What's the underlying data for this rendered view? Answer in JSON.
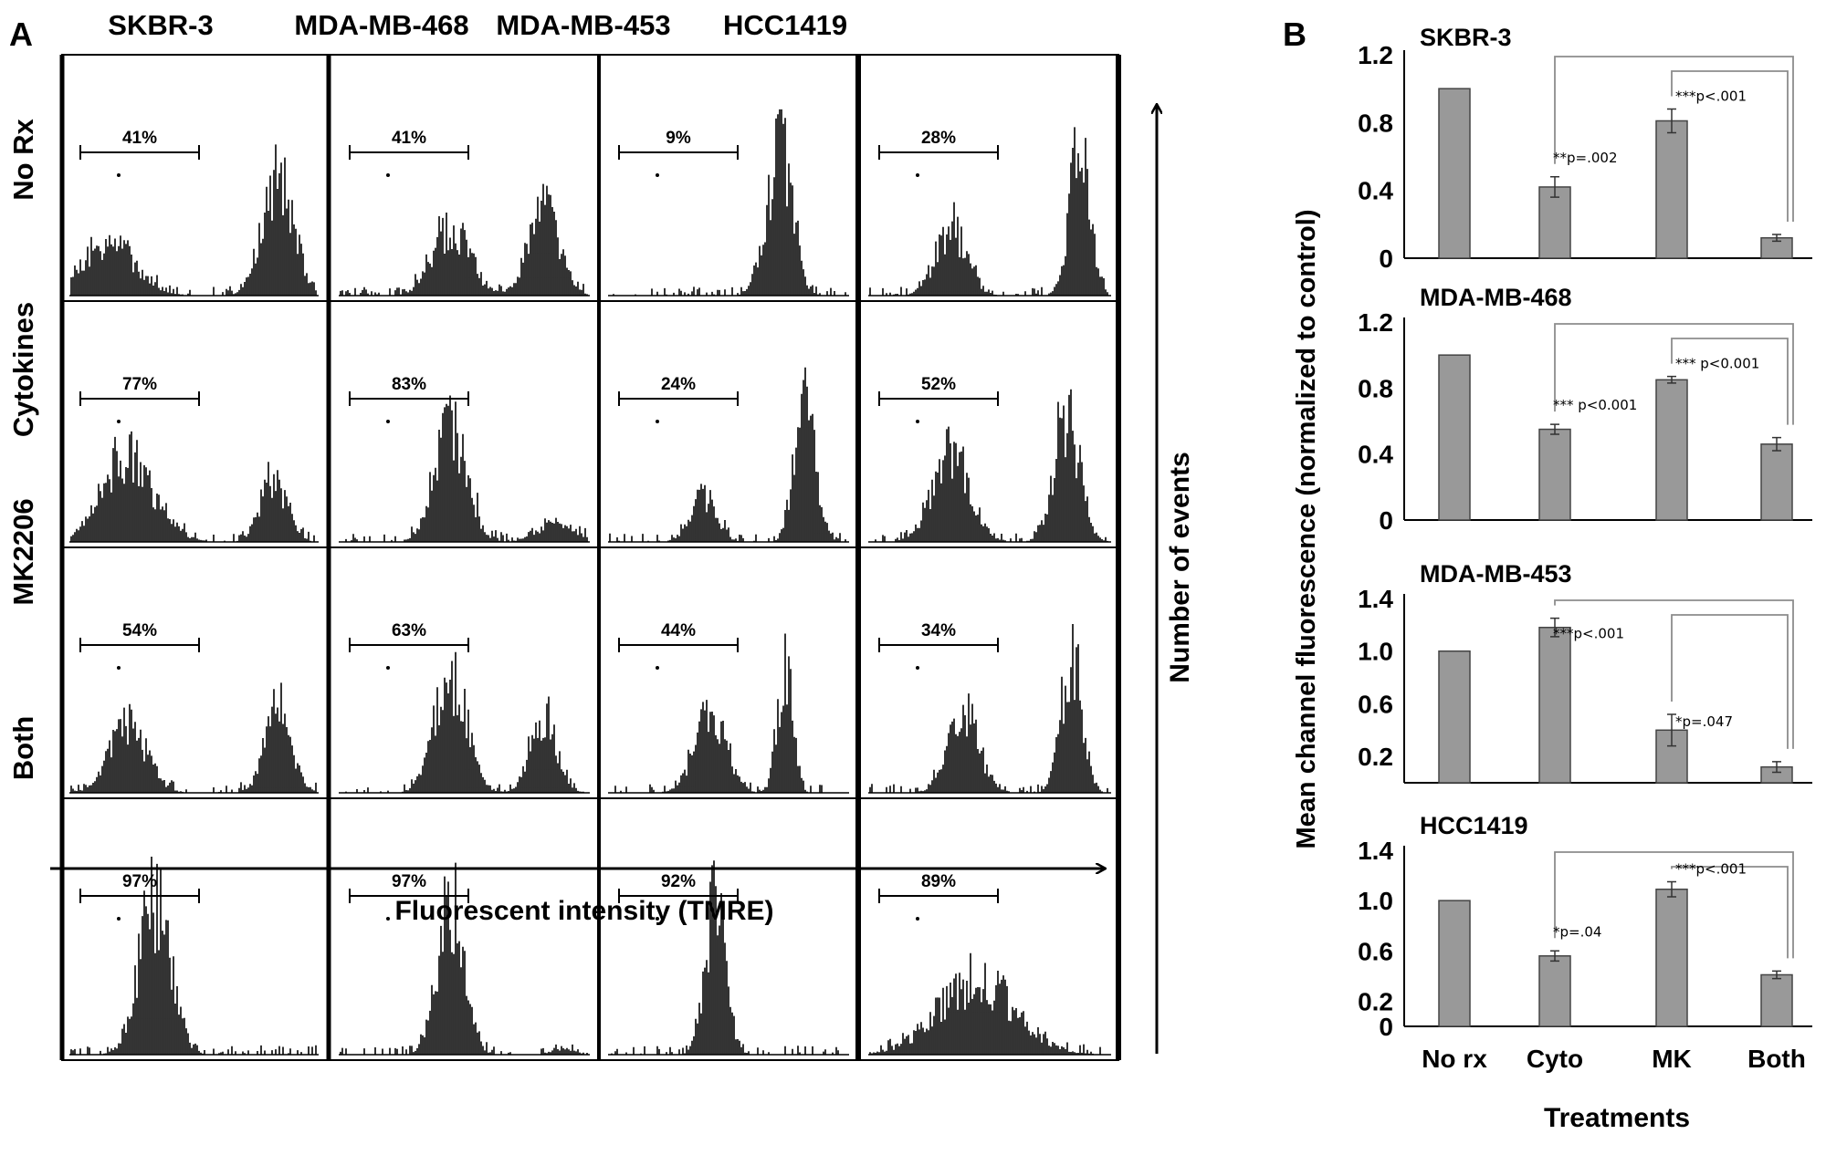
{
  "panel_a": {
    "letter": "A",
    "columns": [
      "SKBR-3",
      "MDA-MB-468",
      "MDA-MB-453",
      "HCC1419"
    ],
    "rows": [
      "No Rx",
      "Cytokines",
      "MK2206",
      "Both"
    ],
    "percentages": [
      [
        "41%",
        "41%",
        "9%",
        "28%"
      ],
      [
        "77%",
        "83%",
        "24%",
        "52%"
      ],
      [
        "54%",
        "63%",
        "44%",
        "34%"
      ],
      [
        "97%",
        "97%",
        "92%",
        "89%"
      ]
    ],
    "xlabel": "Fluorescent intensity (TMRE)",
    "ylabel": "Number of events"
  },
  "panel_b": {
    "letter": "B",
    "ylabel": "Mean channel fluorescence (normalized to control)",
    "xlabel": "Treatments",
    "colors": {
      "bar": "#999999",
      "bar_stroke": "#444444",
      "bracket": "#8c8c8c"
    }
  },
  "chart_data": [
    {
      "type": "bar",
      "title": "SKBR-3",
      "categories": [
        "No rx",
        "Cyto",
        "MK",
        "Both"
      ],
      "values": [
        1.0,
        0.42,
        0.81,
        0.12
      ],
      "errors": [
        0.0,
        0.06,
        0.07,
        0.02
      ],
      "ylim": [
        0,
        1.2
      ],
      "yticks": [
        "0",
        "0.4",
        "0.8",
        "1.2"
      ],
      "annotations": [
        "**p=.002",
        "***p<.001"
      ]
    },
    {
      "type": "bar",
      "title": "MDA-MB-468",
      "categories": [
        "No rx",
        "Cyto",
        "MK",
        "Both"
      ],
      "values": [
        1.0,
        0.55,
        0.85,
        0.46
      ],
      "errors": [
        0.0,
        0.03,
        0.02,
        0.04
      ],
      "ylim": [
        0,
        1.2
      ],
      "yticks": [
        "0",
        "0.4",
        "0.8",
        "1.2"
      ],
      "annotations": [
        "*** p<0.001",
        "*** p<0.001"
      ]
    },
    {
      "type": "bar",
      "title": "MDA-MB-453",
      "categories": [
        "No rx",
        "Cyto",
        "MK",
        "Both"
      ],
      "values": [
        1.0,
        1.18,
        0.4,
        0.12
      ],
      "errors": [
        0.0,
        0.07,
        0.12,
        0.04
      ],
      "ylim": [
        0,
        1.4
      ],
      "yticks": [
        "0.2",
        "0.6",
        "1.0",
        "1.4"
      ],
      "annotations": [
        "***p<.001",
        "*p=.047"
      ]
    },
    {
      "type": "bar",
      "title": "HCC1419",
      "categories": [
        "No rx",
        "Cyto",
        "MK",
        "Both"
      ],
      "values": [
        1.0,
        0.56,
        1.09,
        0.41
      ],
      "errors": [
        0.0,
        0.04,
        0.06,
        0.03
      ],
      "ylim": [
        0,
        1.4
      ],
      "yticks": [
        "0",
        "0.2",
        "0.6",
        "1.0",
        "1.4"
      ],
      "annotations": [
        "*p=.04",
        "***p<.001"
      ]
    }
  ]
}
